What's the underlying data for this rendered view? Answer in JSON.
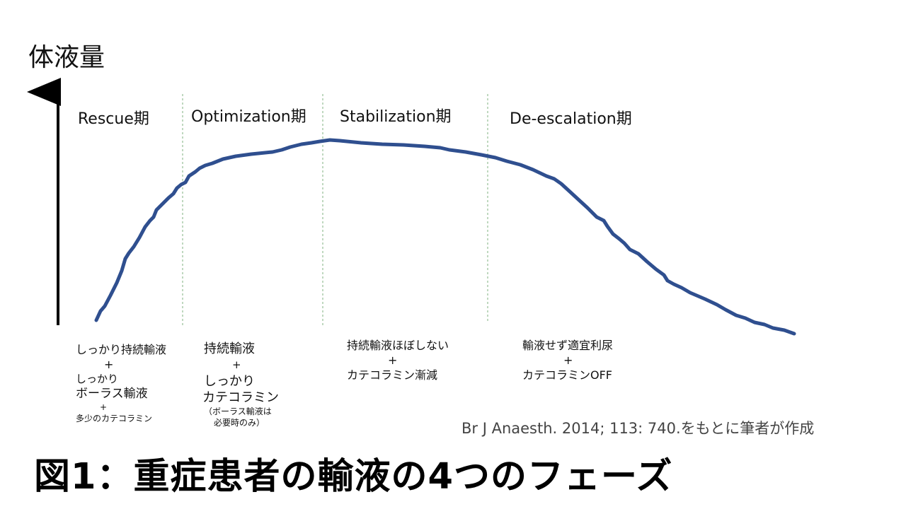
{
  "diagram": {
    "y_axis_label": "体液量",
    "phases": [
      {
        "label": "Rescue期"
      },
      {
        "label": "Optimization期"
      },
      {
        "label": "Stabilization期"
      },
      {
        "label": "De-escalation期"
      }
    ],
    "notes": {
      "rescue": {
        "line1": "しっかり持続輸液",
        "plus1": "+",
        "line2": "しっかり",
        "line3": "ボーラス輸液",
        "plus2": "+",
        "line4": "多少のカテコラミン"
      },
      "optimization": {
        "line1": "持続輸液",
        "plus1": "+",
        "line2": "しっかり",
        "line3": "カテコラミン",
        "sub1": "（ボーラス輸液は",
        "sub2": "必要時のみ）"
      },
      "stabilization": {
        "line1": "持続輸液ほぼしない",
        "plus1": "+",
        "line2": "カテコラミン漸減"
      },
      "deescalation": {
        "line1": "輸液せず適宜利尿",
        "plus1": "+",
        "line2": "カテコラミンOFF"
      }
    },
    "curve_color": "#2F4F8F",
    "divider_color": "#7FB07F"
  },
  "source": "Br J Anaesth. 2014; 113: 740.をもとに筆者が作成",
  "caption": "図1：重症患者の輸液の4つのフェーズ"
}
